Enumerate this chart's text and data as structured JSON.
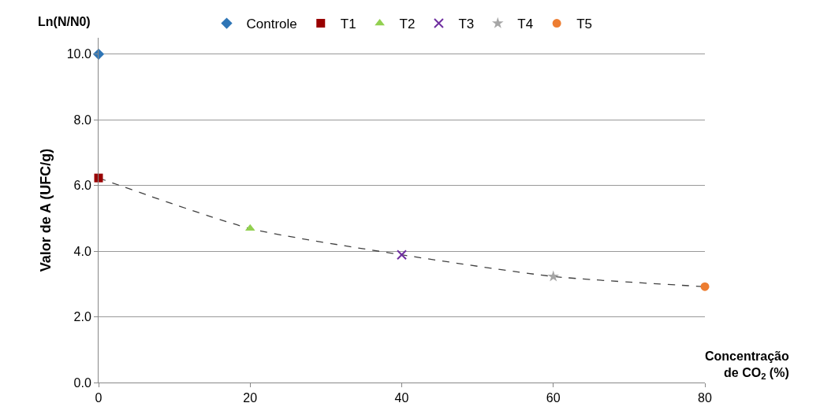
{
  "chart_data": {
    "type": "scatter",
    "ylabel": "Valor de A (UFC/g)",
    "xlabel": "Concentração de CO$_{2}$ (%)",
    "annotations": [
      "Ln(N/N0)"
    ],
    "series": [
      {
        "type": "line",
        "x": [
          0,
          20,
          40,
          60,
          80
        ],
        "values": [
          6.23,
          4.69,
          3.89,
          3.23,
          2.92
        ],
        "color": "#404040",
        "line_style": "dashed",
        "marker": "none"
      },
      {
        "name": "Controle",
        "x": [
          0
        ],
        "values": [
          10.0
        ],
        "color": "#2e75b6",
        "marker": "diamond"
      },
      {
        "name": "T1",
        "x": [
          0
        ],
        "values": [
          6.23
        ],
        "color": "#990000",
        "marker": "square"
      },
      {
        "name": "T2",
        "x": [
          20
        ],
        "values": [
          4.69
        ],
        "color": "#92d050",
        "marker": "triangle"
      },
      {
        "name": "T3",
        "x": [
          40
        ],
        "values": [
          3.89
        ],
        "color": "#7030a0",
        "marker": "cross"
      },
      {
        "name": "T4",
        "x": [
          60
        ],
        "values": [
          3.23
        ],
        "color": "#a6a6a6",
        "marker": "star"
      },
      {
        "name": "T5",
        "x": [
          80
        ],
        "values": [
          2.92
        ],
        "color": "#ed7d31",
        "marker": "circle"
      }
    ],
    "xlim": [
      0,
      80
    ],
    "xticks": [
      0,
      20,
      40,
      60,
      80
    ],
    "ylim": [
      0,
      10.5
    ],
    "yticks": [
      {
        "value": 0,
        "label": "0.0"
      },
      {
        "value": 2,
        "label": "2.0"
      },
      {
        "value": 4,
        "label": "4.0"
      },
      {
        "value": 6,
        "label": "6.0"
      },
      {
        "value": 8,
        "label": "8.0"
      },
      {
        "value": 10,
        "label": "10.0"
      }
    ],
    "grid": "y",
    "legend": "top"
  }
}
